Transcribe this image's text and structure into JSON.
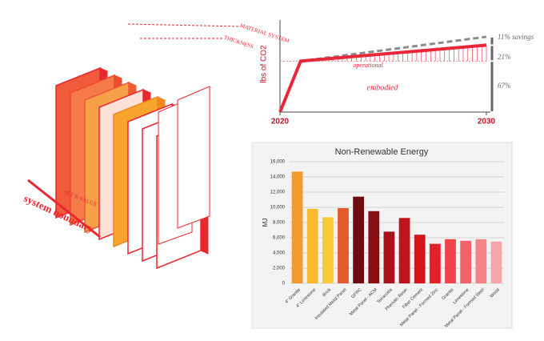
{
  "diagram": {
    "labels": [
      "MATERIAL SYSTEM",
      "THICKNESS",
      "SET R-VALUE",
      "system boundary"
    ]
  },
  "chart_data": [
    {
      "type": "line",
      "y_label": "lbs of CO2",
      "x": [
        2020,
        2021,
        2030
      ],
      "xlim": [
        2020,
        2030
      ],
      "xticks": [
        2020,
        2030
      ],
      "ylim": [
        0,
        100
      ],
      "series": [
        {
          "color": "#8c8c8c",
          "values": [
            0,
            67,
            99
          ]
        },
        {
          "color": "#e8283a",
          "values": [
            0,
            67,
            88
          ]
        }
      ],
      "annotations": [
        "embodied",
        "operational",
        "11% savings",
        "21%",
        "67%"
      ]
    },
    {
      "type": "bar",
      "title": "Non-Renewable Energy",
      "y_label": "MJ",
      "categories": [
        "4\" Granite",
        "4\" Limestone",
        "Brick",
        "Insulated Metal Panel",
        "GFRC",
        "Metal Panel - ACM",
        "Terracotta",
        "Phenolic Resin",
        "Fiber Cement",
        "Metal Panel - Formed Zinc",
        "Granite",
        "Limestone",
        "Metal Panel - Formed Steel",
        "Wood"
      ],
      "values": [
        14700,
        9800,
        8700,
        9900,
        11400,
        9500,
        6800,
        8600,
        6400,
        5200,
        5800,
        5600,
        5800,
        5500
      ],
      "colors": [
        "#f39a2c",
        "#fbb92e",
        "#fcc83c",
        "#e55a2a",
        "#6e0a10",
        "#8a0d12",
        "#a8121a",
        "#bd141c",
        "#d1161f",
        "#e71f27",
        "#ee4348",
        "#f26367",
        "#f58487",
        "#f7a5a7"
      ],
      "ylim": [
        0,
        16000
      ],
      "yticks": [
        0,
        {
          "value": 2000,
          "label": "2,000"
        },
        {
          "value": 4000,
          "label": "4,000"
        },
        {
          "value": 6000,
          "label": "6,000"
        },
        {
          "value": 8000,
          "label": "8,000"
        },
        {
          "value": 10000,
          "label": "10,000"
        },
        {
          "value": 12000,
          "label": "12,000"
        },
        {
          "value": 14000,
          "label": "14,000"
        },
        {
          "value": 16000,
          "label": "16,000"
        }
      ],
      "grid": true
    }
  ]
}
